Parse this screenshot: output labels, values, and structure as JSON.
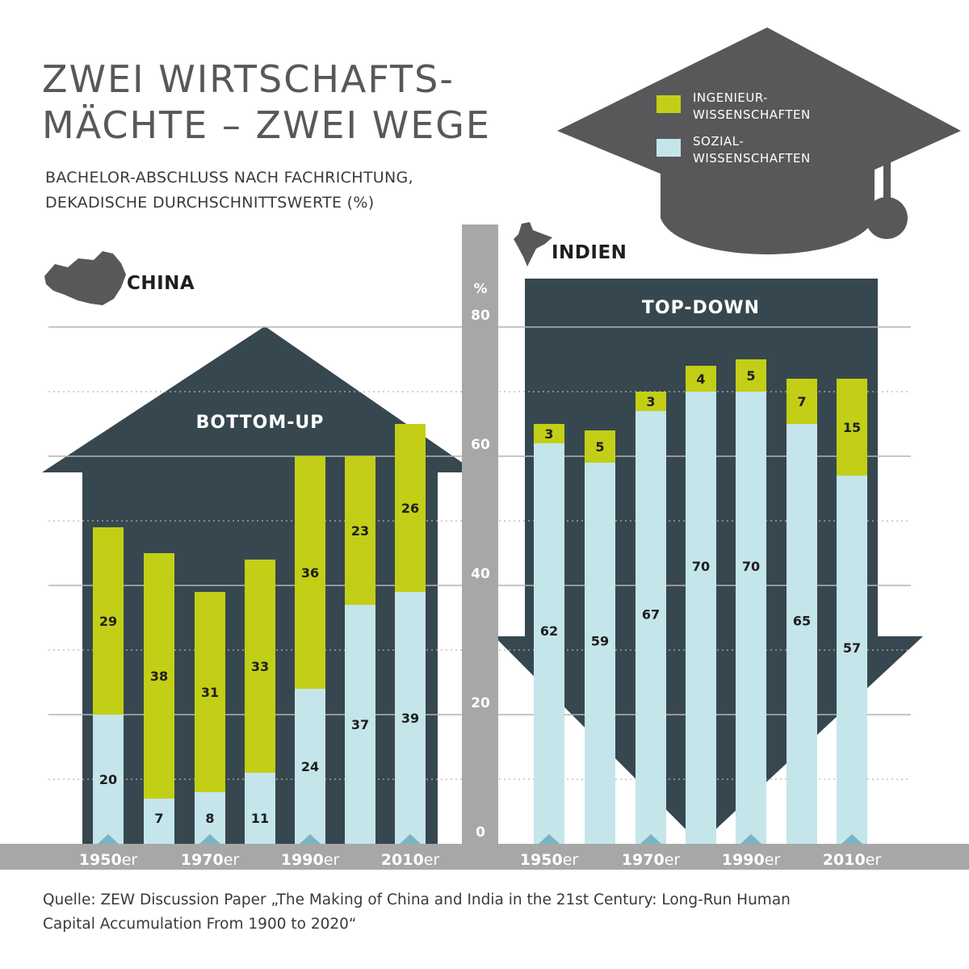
{
  "title": [
    "ZWEI WIRTSCHAFTS-",
    "MÄCHTE – ZWEI WEGE"
  ],
  "subtitle": [
    "BACHELOR-ABSCHLUSS NACH FACHRICHTUNG,",
    "DEKADISCHE DURCHSCHNITTSWERTE (%)"
  ],
  "legend": {
    "engineering": [
      "INGENIEUR-",
      "WISSENSCHAFTEN"
    ],
    "social": [
      "SOZIAL-",
      "WISSENSCHAFTEN"
    ]
  },
  "colors": {
    "engineering": "#c2cf16",
    "social": "#c4e5ea",
    "arrow": "#37474f",
    "cap": "#58585a",
    "axis_band": "#a7a7a7"
  },
  "source": [
    "Quelle: ZEW Discussion Paper „The Making of China and India in the 21st Century: Long-Run Human",
    "Capital Accumulation From 1900 to 2020“"
  ],
  "chart_data": {
    "type": "bar",
    "stacked": true,
    "y_unit": "%",
    "ylim": [
      0,
      80
    ],
    "yticks": [
      0,
      20,
      40,
      60,
      80
    ],
    "grid": true,
    "x_tick_labels": [
      {
        "bold": "1950",
        "suffix": "er"
      },
      {
        "bold": "1970",
        "suffix": "er"
      },
      {
        "bold": "1990",
        "suffix": "er"
      },
      {
        "bold": "2010",
        "suffix": "er"
      }
    ],
    "panels": [
      {
        "country": "CHINA",
        "arrow_label": "BOTTOM-UP",
        "arrow_direction": "up",
        "social": [
          20,
          7,
          8,
          11,
          24,
          37,
          39
        ],
        "engineering": [
          29,
          38,
          31,
          33,
          36,
          23,
          26
        ]
      },
      {
        "country": "INDIEN",
        "arrow_label": "TOP-DOWN",
        "arrow_direction": "down",
        "social": [
          62,
          59,
          67,
          70,
          70,
          65,
          57
        ],
        "engineering": [
          3,
          5,
          3,
          4,
          5,
          7,
          15
        ]
      }
    ]
  }
}
